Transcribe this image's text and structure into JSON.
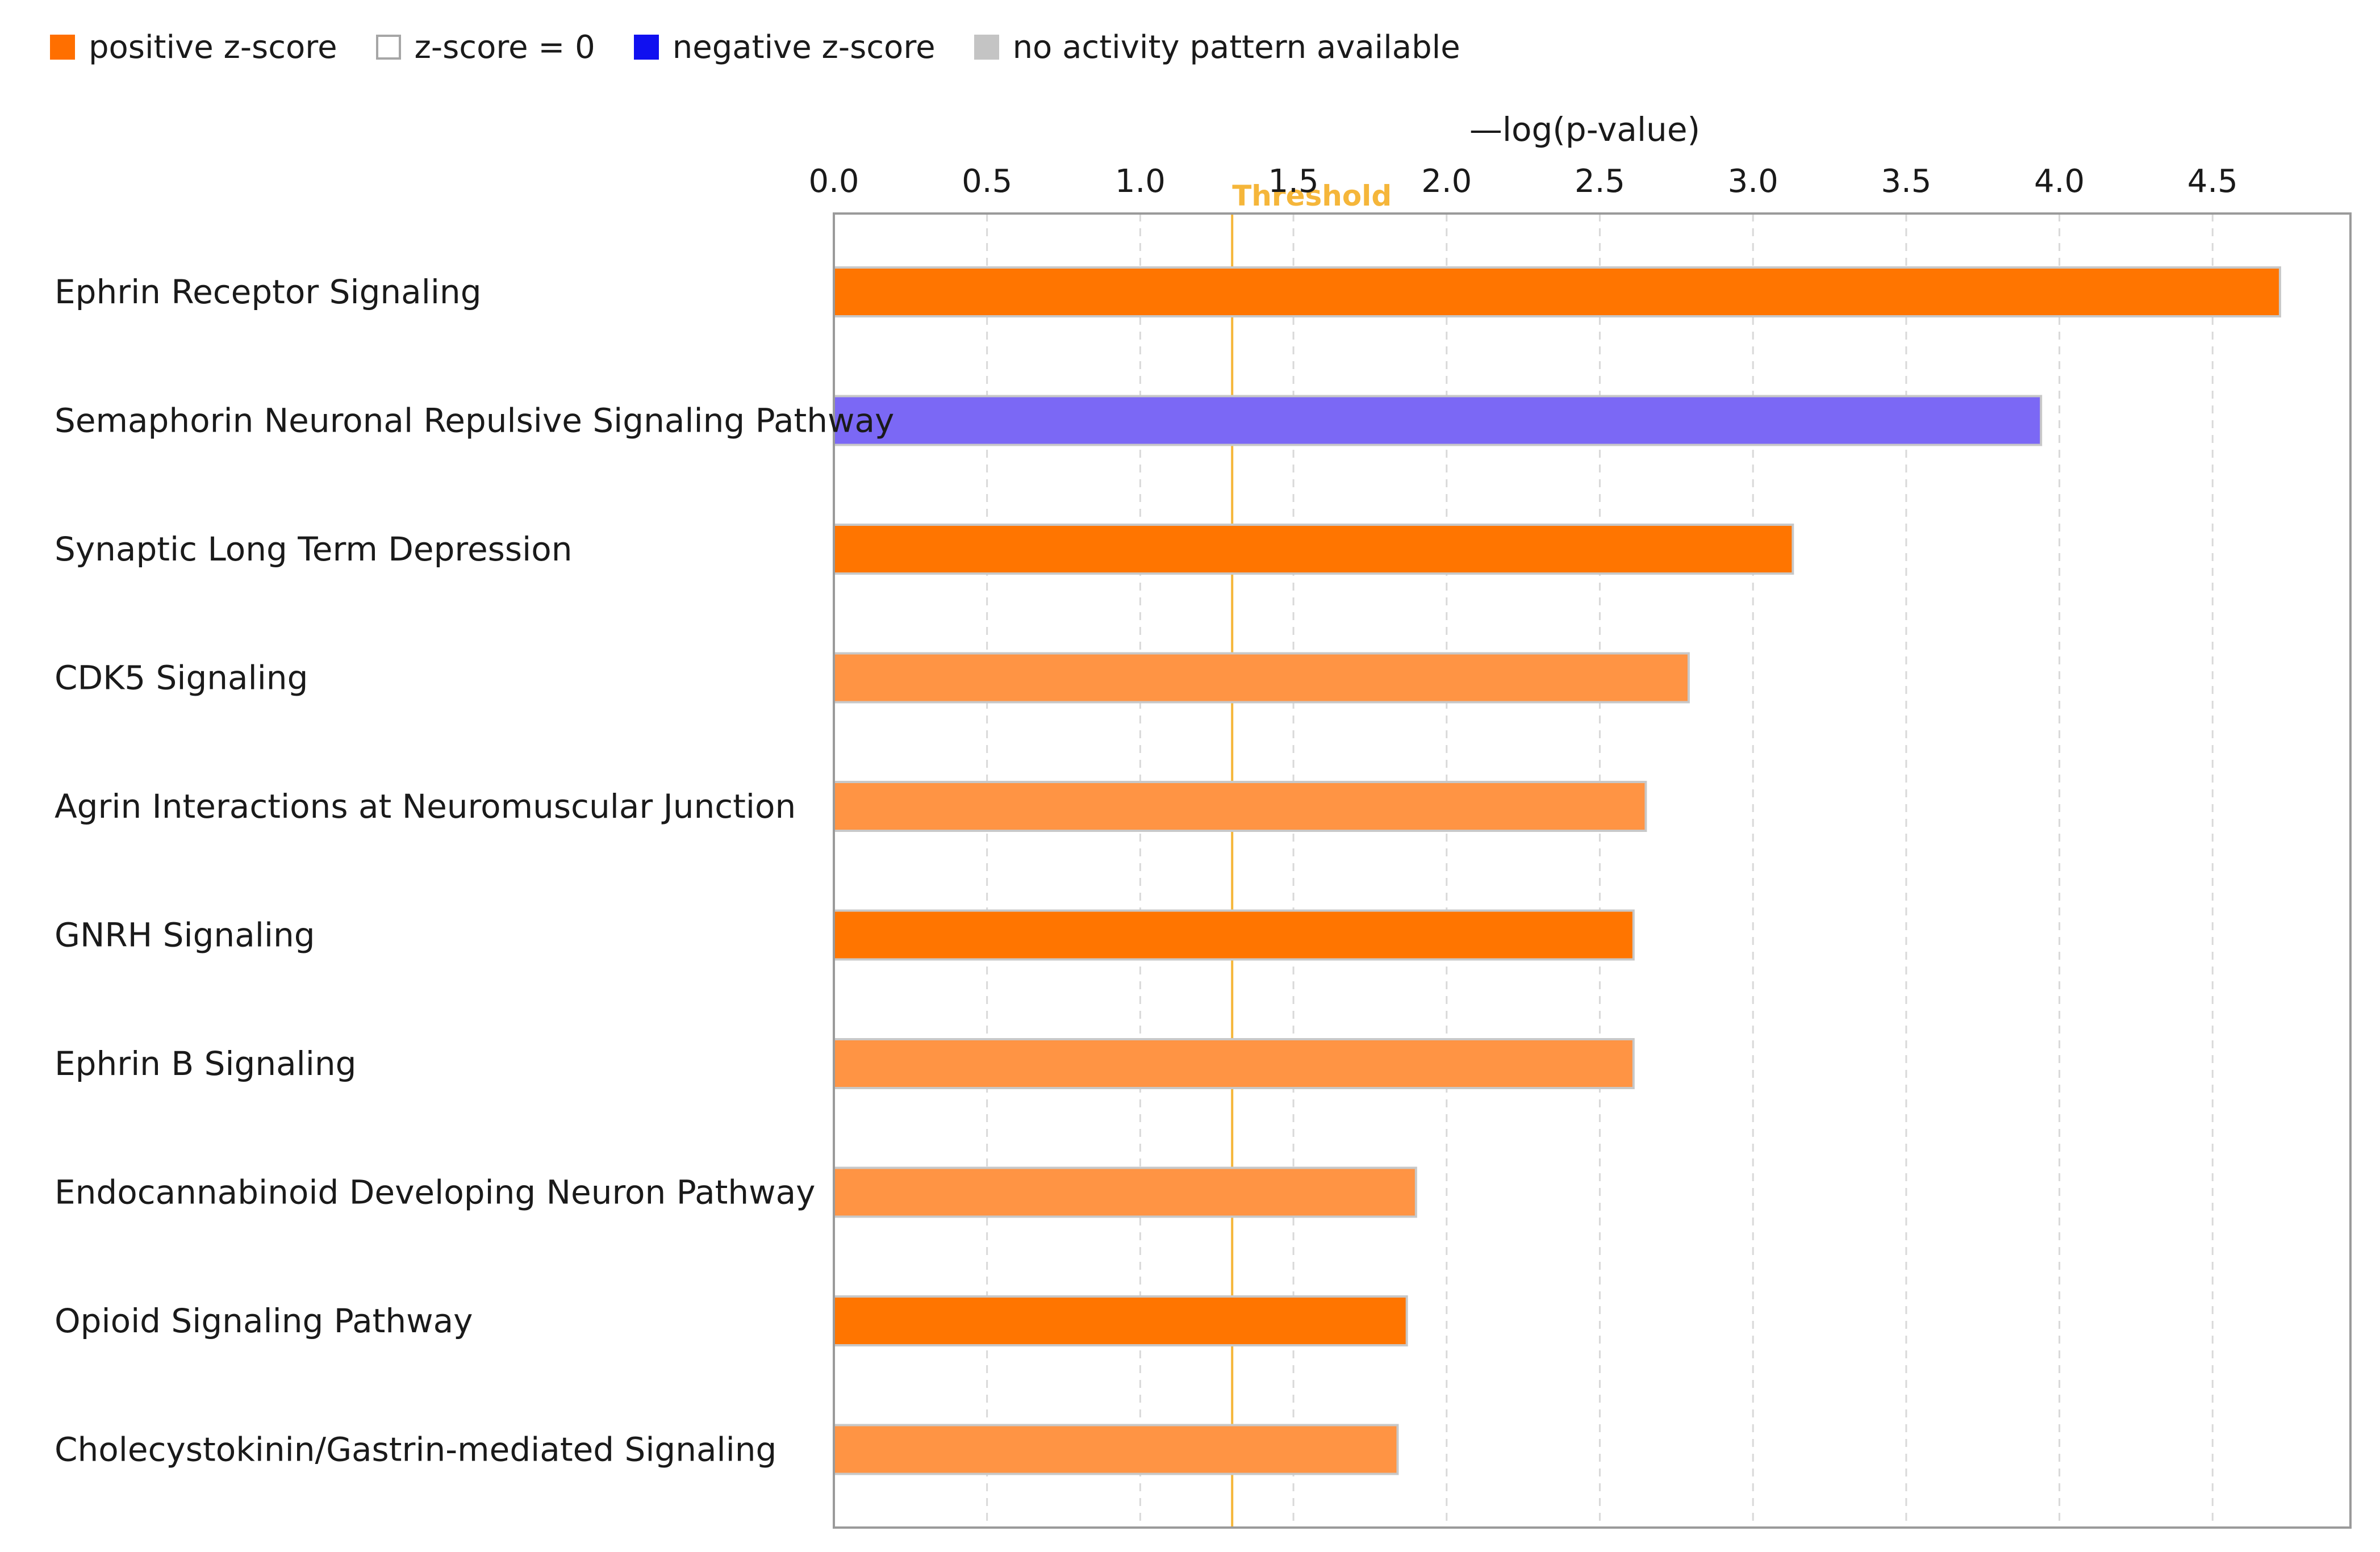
{
  "legend": [
    {
      "label": "positive z-score",
      "color": "#ff6f00",
      "border": "#ff6f00"
    },
    {
      "label": "z-score = 0",
      "color": "#ffffff",
      "border": "#a6a6a6"
    },
    {
      "label": "negative z-score",
      "color": "#1010f0",
      "border": "#1010f0"
    },
    {
      "label": "no activity pattern available",
      "color": "#c4c4c4",
      "border": "#c4c4c4"
    }
  ],
  "chart_data": {
    "type": "bar",
    "orientation": "horizontal",
    "xlabel": "—log(p-value)",
    "xlim": [
      0,
      4.95
    ],
    "xticks": [
      "0.0",
      "0.5",
      "1.0",
      "1.5",
      "2.0",
      "2.5",
      "3.0",
      "3.5",
      "4.0",
      "4.5"
    ],
    "grid": "vertical dashed",
    "legend_position": "top-left",
    "threshold": {
      "label": "Threshold",
      "value": 1.3,
      "color": "#f5b63a"
    },
    "categories": [
      "Ephrin Receptor Signaling",
      "Semaphorin Neuronal Repulsive Signaling Pathway",
      "Synaptic Long Term Depression",
      "CDK5 Signaling",
      "Agrin Interactions at Neuromuscular Junction",
      "GNRH Signaling",
      "Ephrin B Signaling",
      "Endocannabinoid Developing Neuron Pathway",
      "Opioid Signaling Pathway",
      "Cholecystokinin/Gastrin-mediated Signaling"
    ],
    "values": [
      4.72,
      3.94,
      3.13,
      2.79,
      2.65,
      2.61,
      2.61,
      1.9,
      1.87,
      1.84
    ],
    "bar_colors": [
      "#ff7500",
      "#7b68f5",
      "#ff7500",
      "#ff9444",
      "#ff9444",
      "#ff7500",
      "#ff9444",
      "#ff9444",
      "#ff7500",
      "#ff9444"
    ]
  }
}
